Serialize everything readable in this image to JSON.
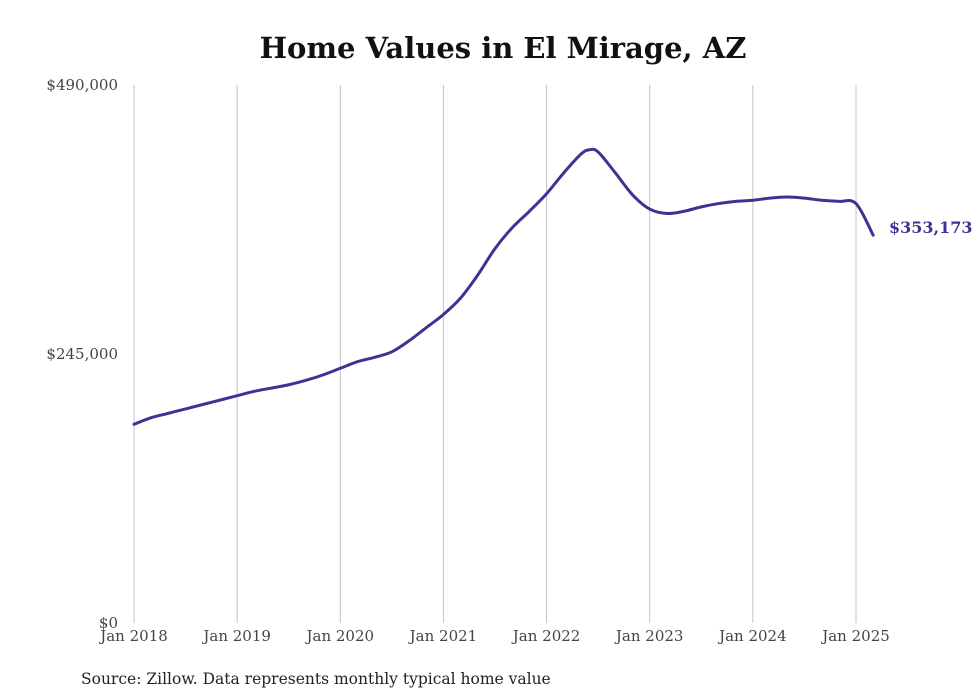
{
  "chart_data": {
    "type": "line",
    "title": "Home Values in El Mirage, AZ",
    "source_note": "Source: Zillow. Data represents monthly typical home value",
    "ylim": [
      0,
      490000
    ],
    "yticks": [
      0,
      245000,
      490000
    ],
    "ytick_labels": [
      "$0",
      "$245,000",
      "$490,000"
    ],
    "xlim": [
      "2018-01",
      "2025-03"
    ],
    "xticks": [
      "2018-01",
      "2019-01",
      "2020-01",
      "2021-01",
      "2022-01",
      "2023-01",
      "2024-01",
      "2025-01"
    ],
    "xtick_labels": [
      "Jan 2018",
      "Jan 2019",
      "Jan 2020",
      "Jan 2021",
      "Jan 2022",
      "Jan 2023",
      "Jan 2024",
      "Jan 2025"
    ],
    "grid": "vertical",
    "line_color": "#3b3494",
    "end_label": "$353,173",
    "series": [
      {
        "x": [
          "2018-01",
          "2018-03",
          "2018-05",
          "2018-07",
          "2018-09",
          "2018-11",
          "2019-01",
          "2019-03",
          "2019-05",
          "2019-07",
          "2019-09",
          "2019-11",
          "2020-01",
          "2020-03",
          "2020-05",
          "2020-07",
          "2020-09",
          "2020-11",
          "2021-01",
          "2021-03",
          "2021-05",
          "2021-07",
          "2021-09",
          "2021-11",
          "2022-01",
          "2022-03",
          "2022-05",
          "2022-06",
          "2022-07",
          "2022-09",
          "2022-11",
          "2023-01",
          "2023-03",
          "2023-05",
          "2023-07",
          "2023-09",
          "2023-11",
          "2024-01",
          "2024-03",
          "2024-05",
          "2024-07",
          "2024-09",
          "2024-11",
          "2025-01",
          "2025-03"
        ],
        "y": [
          181000,
          187000,
          191000,
          195000,
          199000,
          203000,
          207000,
          211000,
          214000,
          217000,
          221000,
          226000,
          232000,
          238000,
          242000,
          247000,
          257000,
          269000,
          281000,
          296000,
          317000,
          341000,
          360000,
          375000,
          391000,
          410000,
          427000,
          431000,
          429000,
          410000,
          390000,
          377000,
          373000,
          375000,
          379000,
          382000,
          384000,
          385000,
          387000,
          388000,
          387000,
          385000,
          384000,
          382000,
          353173
        ]
      }
    ]
  }
}
